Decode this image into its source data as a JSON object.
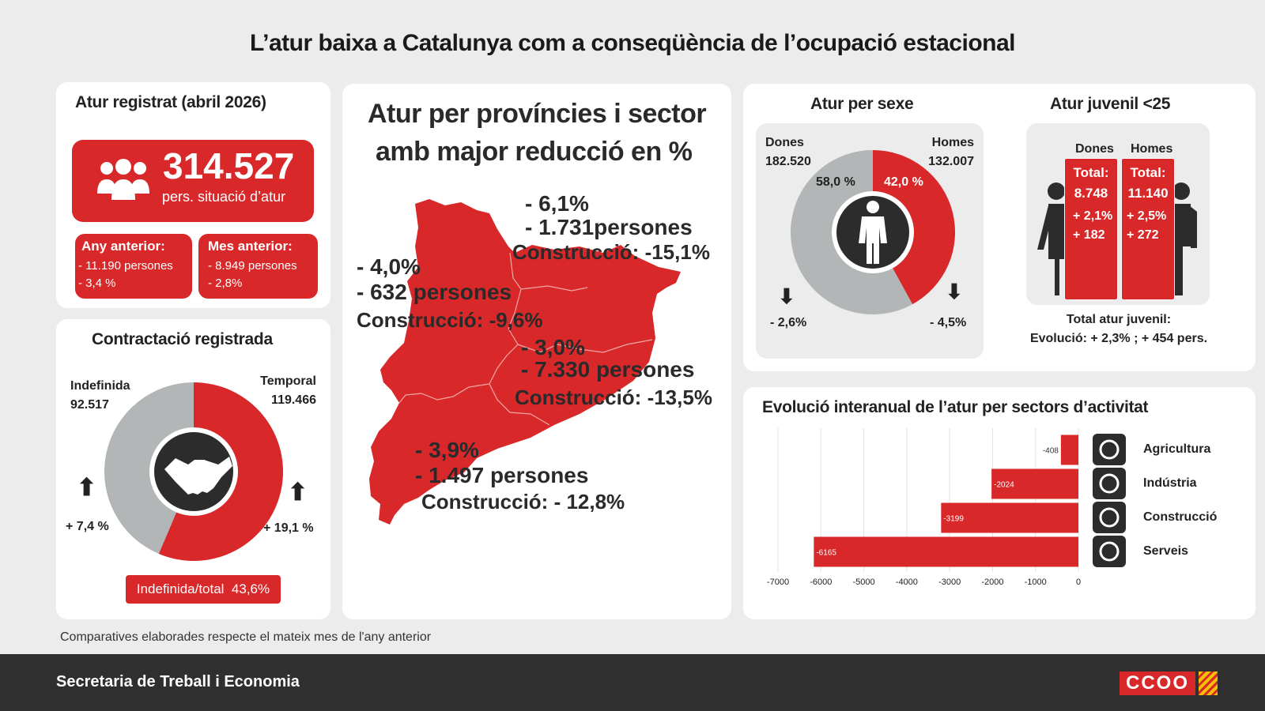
{
  "title": "L’atur baixa a Catalunya com a conseqüència de l’ocupació estacional",
  "registered": {
    "heading": "Atur registrat (abril 2026)",
    "total": "314.527",
    "total_caption": "pers. situació d’atur",
    "year_label": "Any anterior:",
    "year_line1": "- 11.190 persones",
    "year_line2": "- 3,4 %",
    "month_label": "Mes anterior:",
    "month_line1": "- 8.949 persones",
    "month_line2": "- 2,8%"
  },
  "hiring": {
    "heading": "Contractació registrada",
    "indef_label": "Indefinida",
    "indef_value": "92.517",
    "temp_label": "Temporal",
    "temp_value": "119.466",
    "indef_change": "+ 7,4 %",
    "temp_change": "+ 19,1 %",
    "ratio_label": "Indefinida/total  43,6%",
    "indefinite_share": 0.436
  },
  "provinces": {
    "heading_line1": "Atur per províncies i sector",
    "heading_line2": "amb major reducció en %",
    "girona": {
      "pct": "- 6,1%",
      "people": "- 1.731persones",
      "sector": "Construcció: -15,1%"
    },
    "lleida": {
      "pct": "- 4,0%",
      "people": "- 632 persones",
      "sector": "Construcció: -9,6%"
    },
    "barcelona": {
      "pct": "- 3,0%",
      "people": "- 7.330 persones",
      "sector": "Construcció: -13,5%"
    },
    "tarragona": {
      "pct": "- 3,9%",
      "people": "- 1.497 persones",
      "sector": "Construcció: - 12,8%"
    }
  },
  "sex": {
    "heading": "Atur per sexe",
    "women_label": "Dones",
    "women_value": "182.520",
    "men_label": "Homes",
    "men_value": "132.007",
    "women_pct": "58,0 %",
    "men_pct": "42,0 %",
    "women_share": 0.58,
    "women_change": "- 2,6%",
    "men_change": "- 4,5%"
  },
  "youth": {
    "heading": "Atur juvenil <25",
    "women_label": "Dones",
    "men_label": "Homes",
    "women_total_label": "Total:",
    "women_total": "8.748",
    "women_pct": "+ 2,1%",
    "women_abs": "+ 182",
    "men_total_label": "Total:",
    "men_total": "11.140",
    "men_pct": "+ 2,5%",
    "men_abs": "+ 272",
    "footer_line1": "Total atur juvenil:",
    "footer_line2": "Evolució: + 2,3% ; + 454 pers."
  },
  "chart_data": {
    "type": "bar",
    "orientation": "horizontal",
    "title": "Evolució interanual de l’atur per sectors d’activitat",
    "categories": [
      "Agricultura",
      "Indústria",
      "Construcció",
      "Serveis"
    ],
    "values": [
      -408,
      -2024,
      -3199,
      -6165
    ],
    "xlim": [
      -7000,
      0
    ],
    "xticks": [
      -7000,
      -6000,
      -5000,
      -4000,
      -3000,
      -2000,
      -1000,
      0
    ],
    "grid": true,
    "bar_color": "#d8282a",
    "icons": [
      "wheat-icon",
      "factory-icon",
      "worker-icon",
      "dining-icon"
    ]
  },
  "footnote": "Comparatives elaborades respecte el mateix mes de l'any anterior",
  "footer": {
    "org": "Secretaria de Treball i Economia",
    "logo_text": "CCOO"
  },
  "colors": {
    "accent": "#d8282a",
    "grey": "#b3b6b7",
    "dark": "#2f2f2f"
  }
}
